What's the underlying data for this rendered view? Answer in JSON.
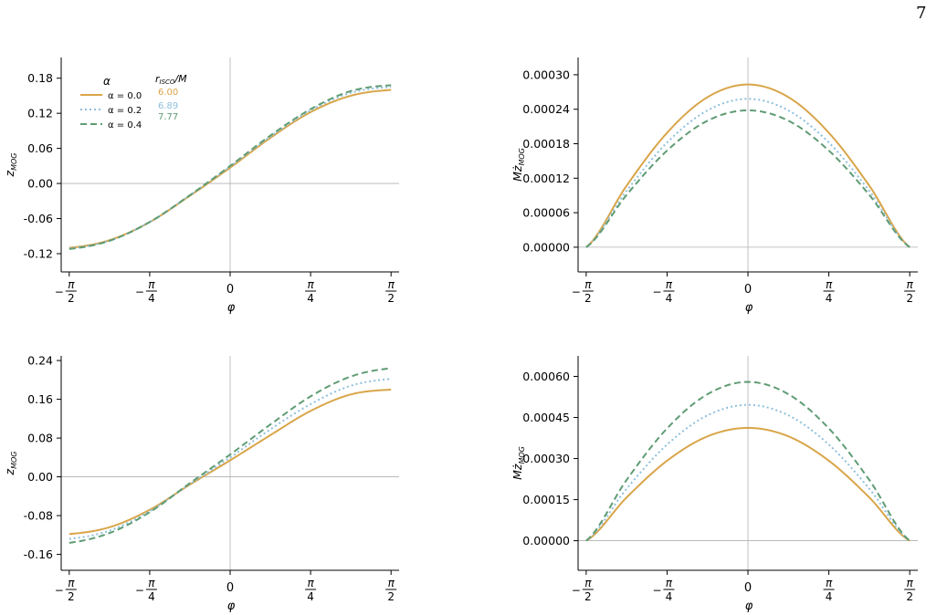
{
  "page_number": "7",
  "colors": {
    "alpha_0": "#d9a54a",
    "alpha_02": "#8ebfdc",
    "alpha_04": "#5f9c74"
  },
  "legend": {
    "alpha_header": "α",
    "risco_header": "r_ISCO/M",
    "entries": [
      {
        "label": "α = 0.0",
        "risco": "6.00",
        "style": "solid"
      },
      {
        "label": "α = 0.2",
        "risco": "6.89",
        "style": "dotted"
      },
      {
        "label": "α = 0.4",
        "risco": "7.77",
        "style": "dashed"
      }
    ]
  },
  "chart_data": [
    {
      "type": "line",
      "xlabel": "φ",
      "ylabel": "z_MOG",
      "x_ticks": [
        "−π/2",
        "−π/4",
        "0",
        "π/4",
        "π/2"
      ],
      "xlim": [
        -1.6493,
        1.6493
      ],
      "ylim": [
        -0.1512,
        0.2154
      ],
      "y_ticks": [
        -0.12,
        -0.06,
        0.0,
        0.06,
        0.12,
        0.18
      ],
      "y_tick_labels": [
        "-0.12",
        "-0.06",
        "0.00",
        "0.06",
        "0.12",
        "0.18"
      ],
      "grid": false,
      "series": [
        {
          "name": "α = 0.0",
          "x": [
            -1.5708,
            -1.1781,
            -0.7854,
            -0.3927,
            0.0,
            0.3927,
            0.7854,
            1.1781,
            1.5708
          ],
          "y": [
            -0.11,
            -0.097,
            -0.066,
            -0.021,
            0.027,
            0.078,
            0.122,
            0.15,
            0.16
          ]
        },
        {
          "name": "α = 0.2",
          "x": [
            -1.5708,
            -1.1781,
            -0.7854,
            -0.3927,
            0.0,
            0.3927,
            0.7854,
            1.1781,
            1.5708
          ],
          "y": [
            -0.111,
            -0.098,
            -0.066,
            -0.02,
            0.029,
            0.08,
            0.125,
            0.155,
            0.165
          ]
        },
        {
          "name": "α = 0.4",
          "x": [
            -1.5708,
            -1.1781,
            -0.7854,
            -0.3927,
            0.0,
            0.3927,
            0.7854,
            1.1781,
            1.5708
          ],
          "y": [
            -0.112,
            -0.098,
            -0.066,
            -0.02,
            0.03,
            0.082,
            0.127,
            0.158,
            0.168
          ]
        }
      ]
    },
    {
      "type": "line",
      "xlabel": "φ",
      "ylabel": "M ż_MOG",
      "x_ticks": [
        "−π/2",
        "−π/4",
        "0",
        "π/4",
        "π/2"
      ],
      "xlim": [
        -1.6493,
        1.6493
      ],
      "ylim": [
        -4.3e-05,
        0.00033
      ],
      "y_ticks": [
        0.0,
        6e-05,
        0.00012,
        0.00018,
        0.00024,
        0.0003
      ],
      "y_tick_labels": [
        "0.00000",
        "0.00006",
        "0.00012",
        "0.00018",
        "0.00024",
        "0.00030"
      ],
      "grid": false,
      "series": [
        {
          "name": "α = 0.0",
          "x": [
            -1.5708,
            -1.1781,
            -0.7854,
            -0.3927,
            0.0,
            0.3927,
            0.7854,
            1.1781,
            1.5708
          ],
          "y": [
            0.0,
            0.000107,
            0.000199,
            0.000261,
            0.000283,
            0.000261,
            0.000199,
            0.000107,
            0.0
          ]
        },
        {
          "name": "α = 0.2",
          "x": [
            -1.5708,
            -1.1781,
            -0.7854,
            -0.3927,
            0.0,
            0.3927,
            0.7854,
            1.1781,
            1.5708
          ],
          "y": [
            0.0,
            9.8e-05,
            0.000182,
            0.000238,
            0.000258,
            0.000238,
            0.000182,
            9.8e-05,
            0.0
          ]
        },
        {
          "name": "α = 0.4",
          "x": [
            -1.5708,
            -1.1781,
            -0.7854,
            -0.3927,
            0.0,
            0.3927,
            0.7854,
            1.1781,
            1.5708
          ],
          "y": [
            0.0,
            9.1e-05,
            0.000168,
            0.00022,
            0.000238,
            0.00022,
            0.000168,
            9.1e-05,
            0.0
          ]
        }
      ]
    },
    {
      "type": "line",
      "xlabel": "φ",
      "ylabel": "z_MOG",
      "x_ticks": [
        "−π/2",
        "−π/4",
        "0",
        "π/4",
        "π/2"
      ],
      "xlim": [
        -1.6493,
        1.6493
      ],
      "ylim": [
        -0.1928,
        0.2496
      ],
      "y_ticks": [
        -0.16,
        -0.08,
        0.0,
        0.08,
        0.16,
        0.24
      ],
      "y_tick_labels": [
        "-0.16",
        "-0.08",
        "0.00",
        "0.08",
        "0.16",
        "0.24"
      ],
      "grid": false,
      "series": [
        {
          "name": "α = 0.0",
          "x": [
            -1.5708,
            -1.1781,
            -0.7854,
            -0.3927,
            0.0,
            0.3927,
            0.7854,
            1.1781,
            1.5708
          ],
          "y": [
            -0.118,
            -0.104,
            -0.068,
            -0.016,
            0.034,
            0.086,
            0.136,
            0.17,
            0.18
          ]
        },
        {
          "name": "α = 0.2",
          "x": [
            -1.5708,
            -1.1781,
            -0.7854,
            -0.3927,
            0.0,
            0.3927,
            0.7854,
            1.1781,
            1.5708
          ],
          "y": [
            -0.128,
            -0.111,
            -0.071,
            -0.015,
            0.04,
            0.098,
            0.15,
            0.188,
            0.202
          ]
        },
        {
          "name": "α = 0.4",
          "x": [
            -1.5708,
            -1.1781,
            -0.7854,
            -0.3927,
            0.0,
            0.3927,
            0.7854,
            1.1781,
            1.5708
          ],
          "y": [
            -0.136,
            -0.116,
            -0.073,
            -0.013,
            0.046,
            0.108,
            0.166,
            0.207,
            0.224
          ]
        }
      ]
    },
    {
      "type": "line",
      "xlabel": "φ",
      "ylabel": "M ż_MOG",
      "x_ticks": [
        "−π/2",
        "−π/4",
        "0",
        "π/4",
        "π/2"
      ],
      "xlim": [
        -1.6493,
        1.6493
      ],
      "ylim": [
        -0.000108,
        0.000675
      ],
      "y_ticks": [
        0.0,
        0.00015,
        0.0003,
        0.00045,
        0.0006
      ],
      "y_tick_labels": [
        "0.00000",
        "0.00015",
        "0.00030",
        "0.00045",
        "0.00060"
      ],
      "grid": false,
      "series": [
        {
          "name": "α = 0.0",
          "x": [
            -1.5708,
            -1.1781,
            -0.7854,
            -0.3927,
            0.0,
            0.3927,
            0.7854,
            1.1781,
            1.5708
          ],
          "y": [
            0.0,
            0.000158,
            0.000292,
            0.000381,
            0.000412,
            0.000381,
            0.000292,
            0.000158,
            0.0
          ]
        },
        {
          "name": "α = 0.2",
          "x": [
            -1.5708,
            -1.1781,
            -0.7854,
            -0.3927,
            0.0,
            0.3927,
            0.7854,
            1.1781,
            1.5708
          ],
          "y": [
            0.0,
            0.00019,
            0.000351,
            0.000458,
            0.000496,
            0.000458,
            0.000351,
            0.00019,
            0.0
          ]
        },
        {
          "name": "α = 0.4",
          "x": [
            -1.5708,
            -1.1781,
            -0.7854,
            -0.3927,
            0.0,
            0.3927,
            0.7854,
            1.1781,
            1.5708
          ],
          "y": [
            0.0,
            0.000222,
            0.00041,
            0.000535,
            0.00058,
            0.000535,
            0.00041,
            0.000222,
            0.0
          ]
        }
      ]
    }
  ]
}
